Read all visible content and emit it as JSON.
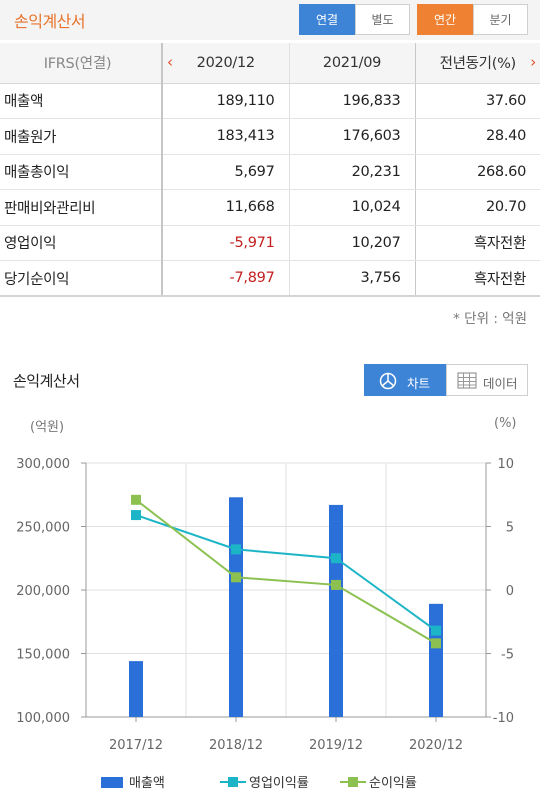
{
  "header": {
    "title": "손익계산서",
    "buttons": [
      "연결",
      "별도",
      "연간",
      "분기"
    ]
  },
  "table": {
    "columns": [
      "IFRS(연결)",
      "2020/12",
      "2021/09",
      "전년동기(%)"
    ],
    "rows": [
      {
        "label": "매출액",
        "v1": "189,110",
        "v2": "196,833",
        "v3": "37.60"
      },
      {
        "label": "매출원가",
        "v1": "183,413",
        "v2": "176,603",
        "v3": "28.40"
      },
      {
        "label": "매출총이익",
        "v1": "5,697",
        "v2": "20,231",
        "v3": "268.60"
      },
      {
        "label": "판매비와관리비",
        "v1": "11,668",
        "v2": "10,024",
        "v3": "20.70"
      },
      {
        "label": "영업이익",
        "v1": "-5,971",
        "v2": "10,207",
        "v3": "흑자전환"
      },
      {
        "label": "당기순이익",
        "v1": "-7,897",
        "v2": "3,756",
        "v3": "흑자전환"
      }
    ],
    "unit_note": "* 단위 : 억원"
  },
  "chart_section": {
    "title": "손익계산서",
    "toggle_chart": "차트",
    "toggle_data": "데이터",
    "left_unit": "(억원)",
    "right_unit": "(%)"
  },
  "colors": {
    "bar": "#2b6fd8",
    "op_line": "#1cb5c7",
    "net_line": "#8cc152",
    "negative": "#c31f1f",
    "accent_orange": "#ee8232",
    "accent_blue": "#3d84d6"
  },
  "chart_data": {
    "type": "bar",
    "categories": [
      "2017/12",
      "2018/12",
      "2019/12",
      "2020/12"
    ],
    "series": [
      {
        "name": "매출액",
        "type": "bar",
        "axis": "left",
        "values": [
          144000,
          273000,
          267000,
          189110
        ]
      },
      {
        "name": "영업이익률",
        "type": "line",
        "axis": "right",
        "values": [
          5.9,
          3.2,
          2.5,
          -3.2
        ]
      },
      {
        "name": "순이익률",
        "type": "line",
        "axis": "right",
        "values": [
          7.1,
          1.0,
          0.4,
          -4.2
        ]
      }
    ],
    "y_left": {
      "min": 100000,
      "max": 300000,
      "ticks": [
        300000,
        250000,
        200000,
        150000,
        100000
      ],
      "tick_labels": [
        "300,000",
        "250,000",
        "200,000",
        "150,000",
        "100,000"
      ]
    },
    "y_right": {
      "min": -10,
      "max": 10,
      "ticks": [
        10,
        5,
        0,
        -5,
        -10
      ],
      "tick_labels": [
        "10",
        "5",
        "0",
        "-5",
        "-10"
      ]
    },
    "legend_position": "bottom"
  }
}
